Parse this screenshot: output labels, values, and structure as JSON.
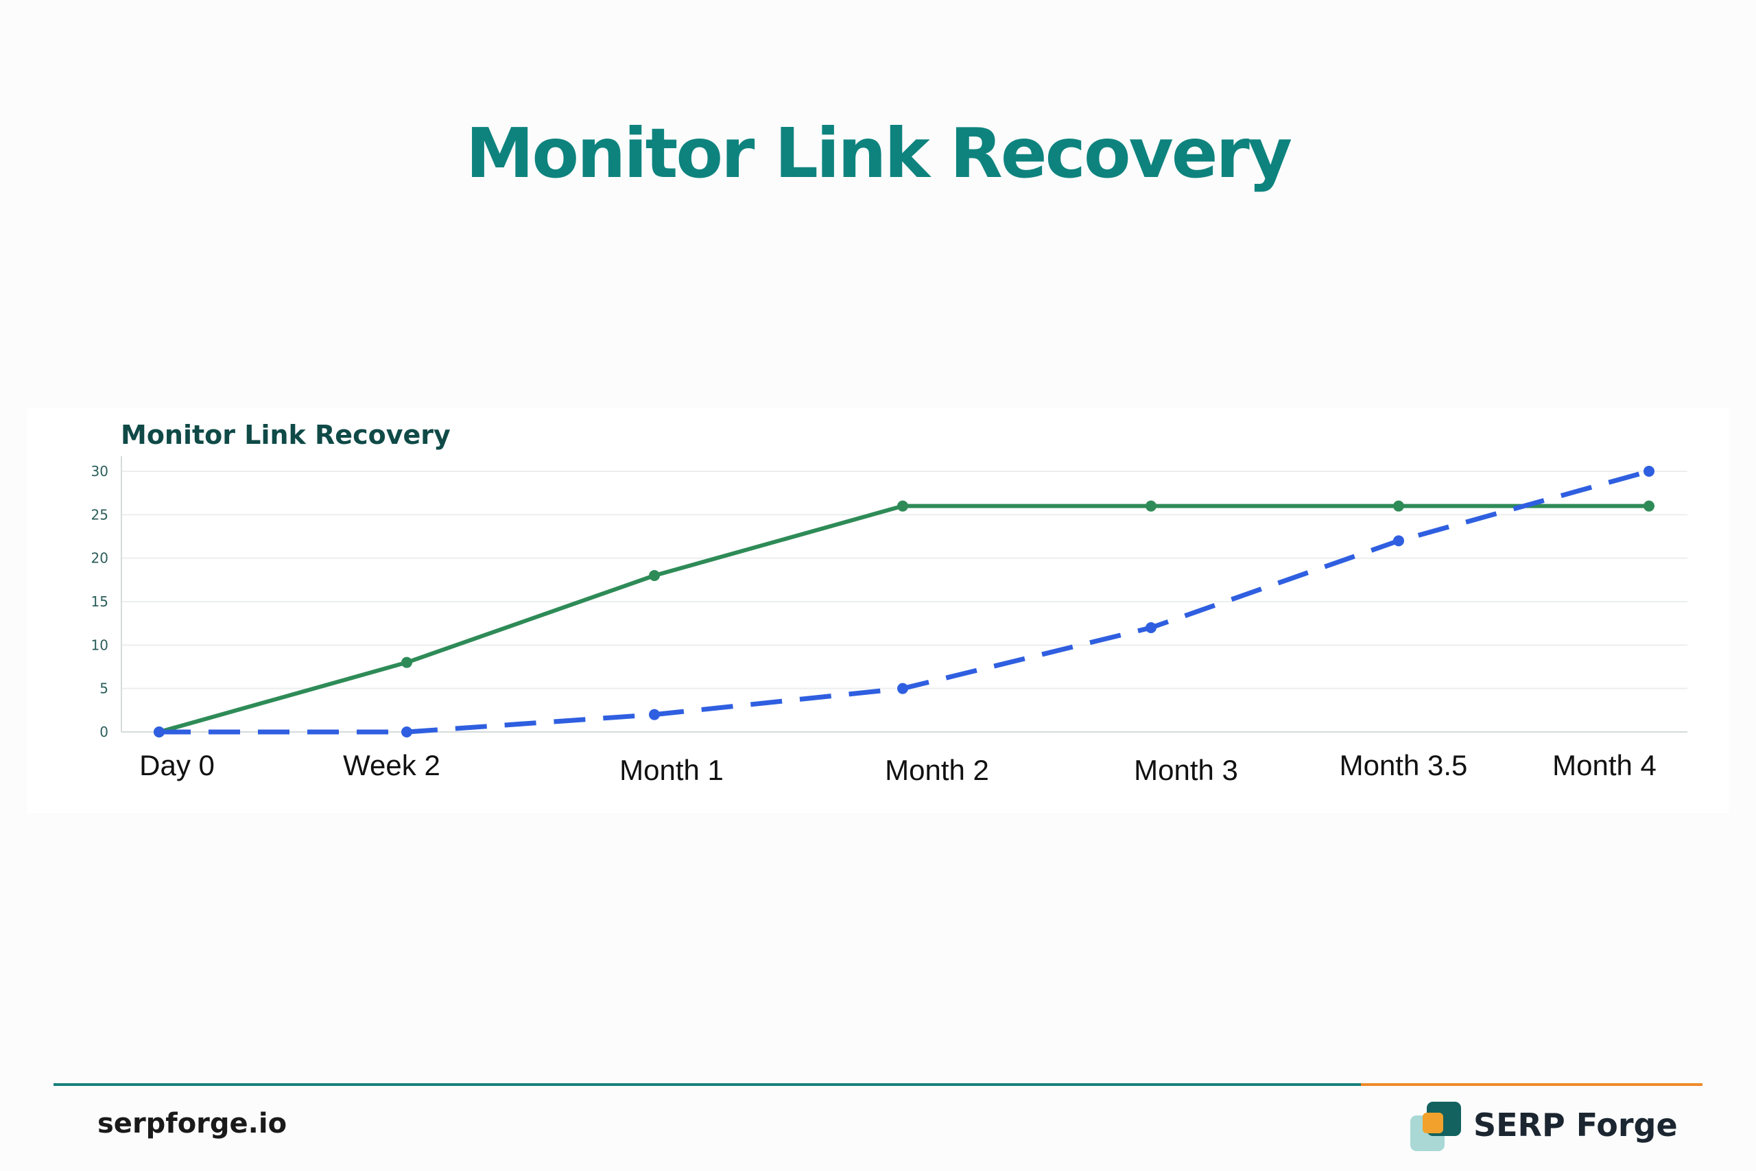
{
  "header": {
    "title": "Monitor Link Recovery"
  },
  "footer": {
    "site": "serpforge.io",
    "brand": "SERP Forge"
  },
  "colors": {
    "title": "#0e837e",
    "series_solid": "#2e8b57",
    "series_dashed": "#2f5fe0",
    "accent_teal": "#19807b",
    "accent_orange": "#ee8a2a"
  },
  "chart_data": {
    "type": "line",
    "title": "Monitor Link Recovery",
    "xlabel": "",
    "ylabel": "",
    "categories": [
      "Day 0",
      "Week 2",
      "Month 1",
      "Month 2",
      "Month 3",
      "Month 3.5",
      "Month 4"
    ],
    "ylim": [
      0,
      30
    ],
    "yticks": [
      "0",
      "5",
      "10",
      "15",
      "20",
      "25",
      "30"
    ],
    "grid": true,
    "legend": "none",
    "series": [
      {
        "style": "solid",
        "color": "#2e8b57",
        "values": [
          0,
          8,
          18,
          26,
          26,
          26,
          26
        ]
      },
      {
        "style": "dashed",
        "color": "#2f5fe0",
        "values": [
          0,
          0,
          2,
          5,
          12,
          22,
          30
        ]
      }
    ]
  }
}
